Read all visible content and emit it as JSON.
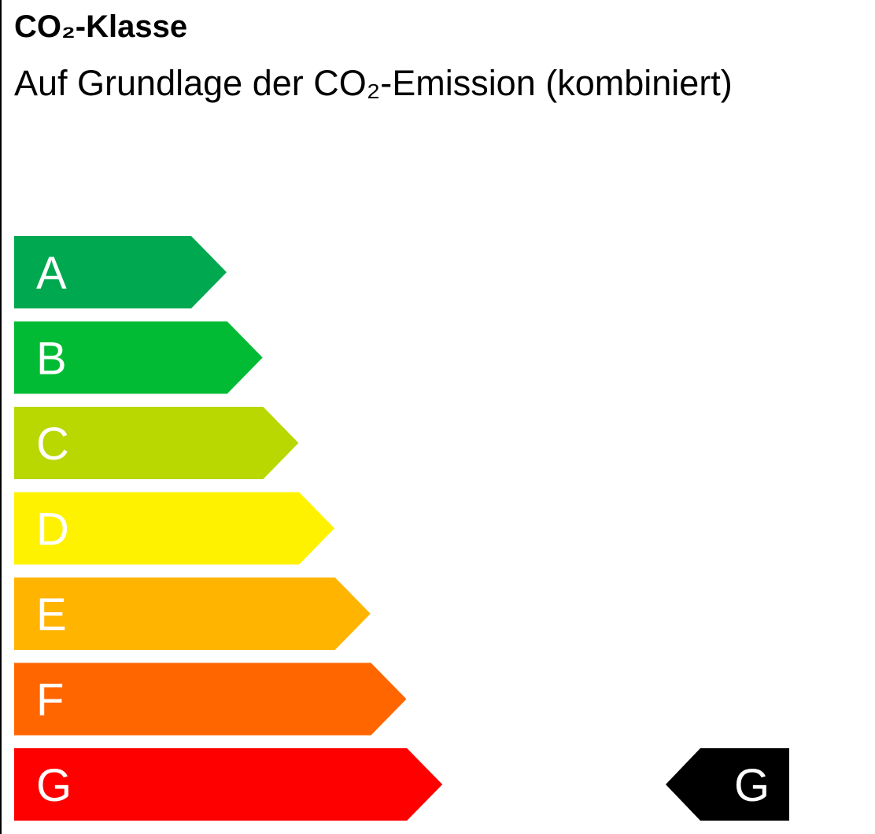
{
  "title": "CO₂-Klasse",
  "subtitle": "Auf Grundlage der CO₂-Emission (kombiniert)",
  "classes": [
    {
      "label": "A",
      "color": "#00a84f"
    },
    {
      "label": "B",
      "color": "#00bb33"
    },
    {
      "label": "C",
      "color": "#b9d700"
    },
    {
      "label": "D",
      "color": "#fff200"
    },
    {
      "label": "E",
      "color": "#ffb400"
    },
    {
      "label": "F",
      "color": "#ff6600"
    },
    {
      "label": "G",
      "color": "#ff0000"
    }
  ],
  "current_class": {
    "label": "G",
    "color": "#000000"
  }
}
